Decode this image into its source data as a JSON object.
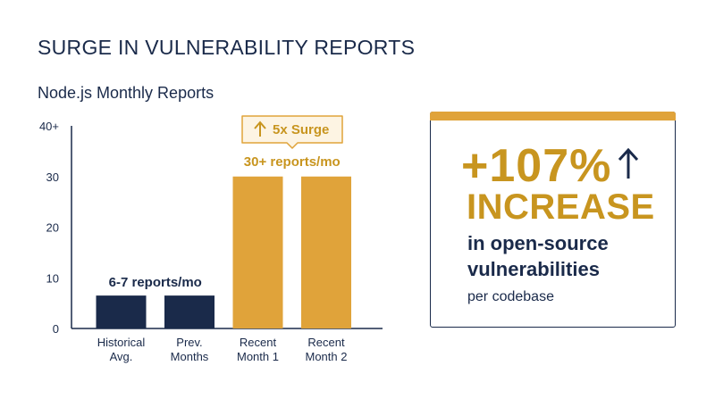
{
  "title": "SURGE IN VULNERABILITY REPORTS",
  "chart_data": {
    "type": "bar",
    "title": "Node.js Monthly Reports",
    "categories": [
      [
        "Historical",
        "Avg."
      ],
      [
        "Prev.",
        "Months"
      ],
      [
        "Recent",
        "Month 1"
      ],
      [
        "Recent",
        "Month 2"
      ]
    ],
    "values": [
      6.5,
      6.5,
      30,
      30
    ],
    "bar_colors": [
      "#1a2a4a",
      "#1a2a4a",
      "#e0a33a",
      "#e0a33a"
    ],
    "ylim": [
      0,
      40
    ],
    "yticks": [
      "0",
      "10",
      "20",
      "30",
      "40+"
    ],
    "annotations": {
      "low_label": "6-7 reports/mo",
      "high_label": "30+ reports/mo",
      "callout": "5x Surge"
    },
    "grid": false
  },
  "stat_card": {
    "value": "+107%",
    "word": "INCREASE",
    "description_lines": [
      "in open-source",
      "vulnerabilities"
    ],
    "note": "per codebase",
    "accent_color": "#e0a33a",
    "arrow_icon": "arrow-up-icon"
  }
}
